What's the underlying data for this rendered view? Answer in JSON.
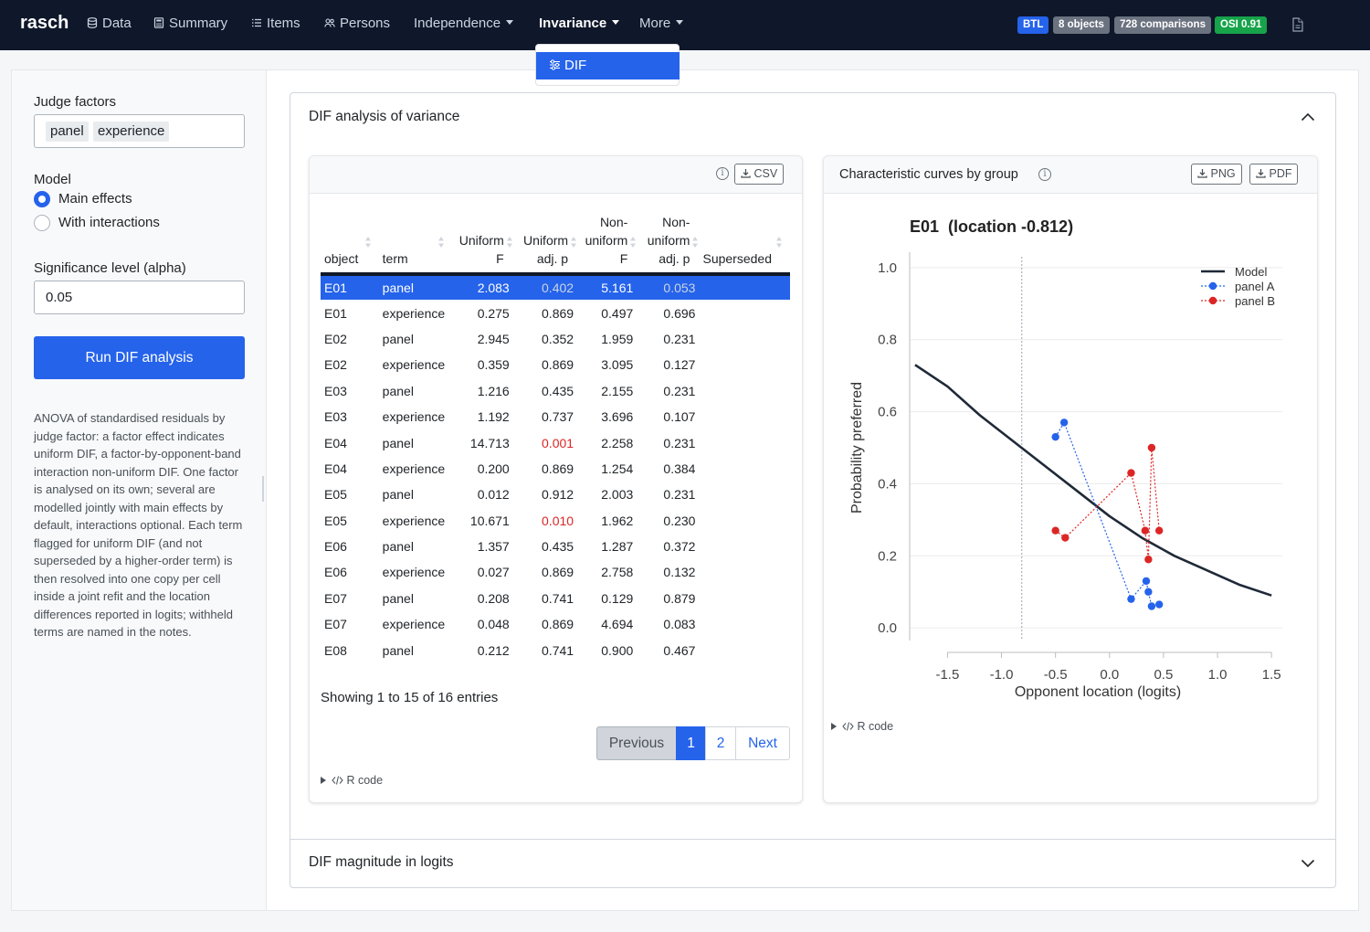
{
  "nav": {
    "brand": "rasch",
    "items": [
      {
        "label": "Data",
        "icon": "database-icon"
      },
      {
        "label": "Summary",
        "icon": "calculator-icon"
      },
      {
        "label": "Items",
        "icon": "list-icon"
      },
      {
        "label": "Persons",
        "icon": "people-icon"
      },
      {
        "label": "Independence",
        "icon": ""
      },
      {
        "label": "Invariance",
        "icon": ""
      },
      {
        "label": "More",
        "icon": ""
      }
    ],
    "badges": [
      "BTL",
      "8 objects",
      "728 comparisons",
      "OSI 0.91"
    ],
    "dropdown_item": "DIF"
  },
  "sidebar": {
    "judge_factors_label": "Judge factors",
    "judge_factors": [
      "panel",
      "experience"
    ],
    "model_label": "Model",
    "model_options": [
      "Main effects",
      "With interactions"
    ],
    "model_selected": "Main effects",
    "alpha_label": "Significance level (alpha)",
    "alpha_value": "0.05",
    "run_button": "Run DIF analysis",
    "help": "ANOVA of standardised residuals by judge factor: a factor effect indicates uniform DIF, a factor-by-opponent-band interaction non-uniform DIF. One factor is analysed on its own; several are modelled jointly with main effects by default, interactions optional. Each term flagged for uniform DIF (and not superseded by a higher-order term) is then resolved into one copy per cell inside a joint refit and the location differences reported in logits; withheld terms are named in the notes."
  },
  "accordion": {
    "panel1_title": "DIF analysis of variance",
    "panel2_title": "DIF magnitude in logits"
  },
  "table": {
    "csv_button": "CSV",
    "headers": [
      "object",
      "term",
      "Uniform F",
      "Uniform adj. p",
      "Non-uniform F",
      "Non-uniform adj. p",
      "Superseded"
    ],
    "header_lines": [
      [
        "object"
      ],
      [
        "term"
      ],
      [
        "Uniform",
        "F"
      ],
      [
        "Uniform",
        "adj. p"
      ],
      [
        "Non-",
        "uniform",
        "F"
      ],
      [
        "Non-",
        "uniform",
        "adj. p"
      ],
      [
        "Superseded"
      ]
    ],
    "selected_row": 0,
    "rows": [
      [
        "E01",
        "panel",
        "2.083",
        "0.402",
        "5.161",
        "0.053",
        ""
      ],
      [
        "E01",
        "experience",
        "0.275",
        "0.869",
        "0.497",
        "0.696",
        ""
      ],
      [
        "E02",
        "panel",
        "2.945",
        "0.352",
        "1.959",
        "0.231",
        ""
      ],
      [
        "E02",
        "experience",
        "0.359",
        "0.869",
        "3.095",
        "0.127",
        ""
      ],
      [
        "E03",
        "panel",
        "1.216",
        "0.435",
        "2.155",
        "0.231",
        ""
      ],
      [
        "E03",
        "experience",
        "1.192",
        "0.737",
        "3.696",
        "0.107",
        ""
      ],
      [
        "E04",
        "panel",
        "14.713",
        "0.001",
        "2.258",
        "0.231",
        ""
      ],
      [
        "E04",
        "experience",
        "0.200",
        "0.869",
        "1.254",
        "0.384",
        ""
      ],
      [
        "E05",
        "panel",
        "0.012",
        "0.912",
        "2.003",
        "0.231",
        ""
      ],
      [
        "E05",
        "experience",
        "10.671",
        "0.010",
        "1.962",
        "0.230",
        ""
      ],
      [
        "E06",
        "panel",
        "1.357",
        "0.435",
        "1.287",
        "0.372",
        ""
      ],
      [
        "E06",
        "experience",
        "0.027",
        "0.869",
        "2.758",
        "0.132",
        ""
      ],
      [
        "E07",
        "panel",
        "0.208",
        "0.741",
        "0.129",
        "0.879",
        ""
      ],
      [
        "E07",
        "experience",
        "0.048",
        "0.869",
        "4.694",
        "0.083",
        ""
      ],
      [
        "E08",
        "panel",
        "0.212",
        "0.741",
        "0.900",
        "0.467",
        ""
      ]
    ],
    "info": "Showing 1 to 15 of 16 entries",
    "pager": [
      "Previous",
      "1",
      "2",
      "Next"
    ],
    "rcode": "R code"
  },
  "chart_panel": {
    "title": "Characteristic curves by group",
    "png_button": "PNG",
    "pdf_button": "PDF",
    "rcode": "R code"
  },
  "colors": {
    "accent": "#2563eb",
    "significant": "#dc2626",
    "panel_a": "#2563eb",
    "panel_b": "#dc2626",
    "model": "#1f2937"
  },
  "chart_data": {
    "type": "scatter",
    "title": "E01  (location -0.812)",
    "xlabel": "Opponent location (logits)",
    "ylabel": "Probability preferred",
    "xlim": [
      -1.85,
      1.6
    ],
    "ylim": [
      -0.03,
      1.03
    ],
    "xticks": [
      -1.5,
      -1.0,
      -0.5,
      0.0,
      0.5,
      1.0,
      1.5
    ],
    "yticks": [
      0.0,
      0.2,
      0.4,
      0.6,
      0.8,
      1.0
    ],
    "grid": true,
    "legend": "top-right",
    "reference_x": -0.812,
    "model": {
      "name": "Model",
      "x": [
        -1.8,
        -1.5,
        -1.2,
        -0.9,
        -0.6,
        -0.3,
        0.0,
        0.3,
        0.6,
        0.9,
        1.2,
        1.5
      ],
      "y": [
        0.73,
        0.67,
        0.59,
        0.52,
        0.45,
        0.38,
        0.31,
        0.25,
        0.2,
        0.16,
        0.12,
        0.09
      ]
    },
    "series": [
      {
        "name": "panel A",
        "x": [
          -0.5,
          -0.42,
          0.2,
          0.34,
          0.36,
          0.39,
          0.46
        ],
        "y": [
          0.53,
          0.57,
          0.08,
          0.13,
          0.1,
          0.06,
          0.065
        ]
      },
      {
        "name": "panel B",
        "x": [
          -0.5,
          -0.41,
          0.2,
          0.33,
          0.36,
          0.39,
          0.46
        ],
        "y": [
          0.27,
          0.25,
          0.43,
          0.27,
          0.19,
          0.5,
          0.27
        ]
      }
    ]
  }
}
